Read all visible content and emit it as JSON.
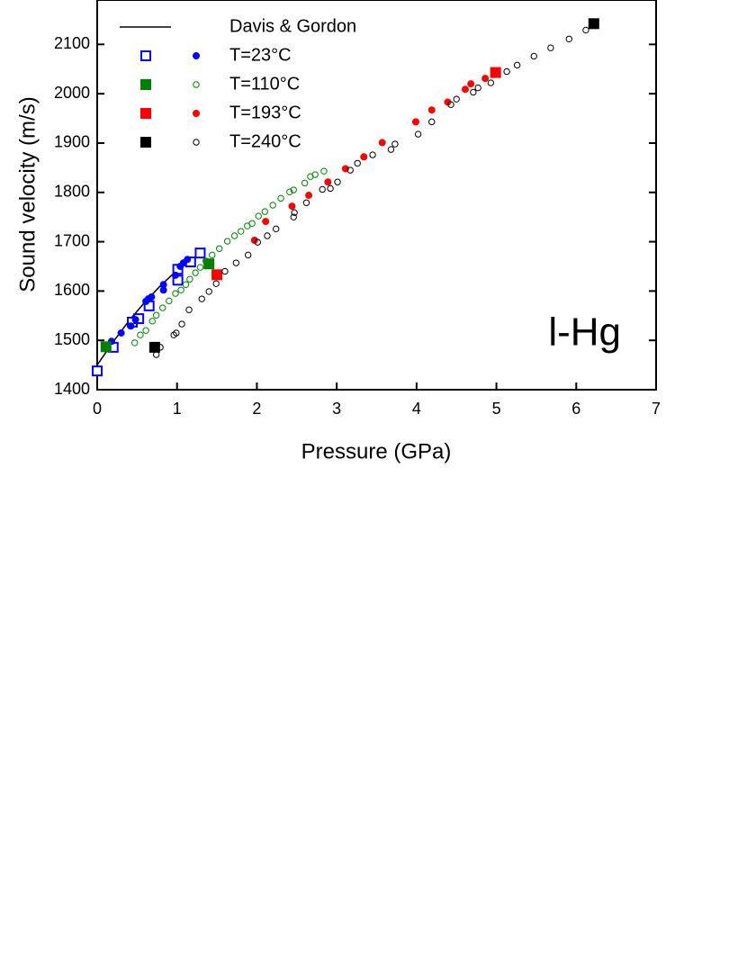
{
  "chart_data": {
    "type": "scatter",
    "xlabel": "Pressure (GPa)",
    "ylabel": "Sound velocity (m/s)",
    "annotation": "l-Hg",
    "xlim": [
      0,
      7
    ],
    "xticks": [
      0,
      1,
      2,
      3,
      4,
      5,
      6,
      7
    ],
    "ylim": [
      1400,
      2190
    ],
    "yticks": [
      1400,
      1500,
      1600,
      1700,
      1800,
      1900,
      2000,
      2100
    ],
    "series": [
      {
        "name": "Davis & Gordon",
        "color": "#000000",
        "x": [
          0,
          0.2,
          0.4,
          0.6,
          0.8,
          1.0,
          1.2
        ],
        "values": [
          1450,
          1497,
          1540,
          1578,
          1612,
          1642,
          1668
        ]
      },
      {
        "name": "T=23°C",
        "color": "#0000ff",
        "squares": {
          "filled": false,
          "x": [
            0,
            0.2,
            0.44,
            0.52,
            0.65,
            1.01,
            1.01,
            1.17,
            1.29
          ],
          "values": [
            1438,
            1486,
            1537,
            1544,
            1570,
            1622,
            1644,
            1659,
            1677
          ]
        },
        "circles": {
          "filled": true,
          "x": [
            0.11,
            0.18,
            0.3,
            0.42,
            0.48,
            0.61,
            0.64,
            0.68,
            0.83,
            0.83,
            0.98,
            1.04,
            1.08,
            1.13
          ],
          "values": [
            1486,
            1498,
            1515,
            1529,
            1542,
            1579,
            1584,
            1588,
            1613,
            1602,
            1632,
            1650,
            1657,
            1664
          ]
        }
      },
      {
        "name": "T=110°C",
        "color": "#008000",
        "squares": {
          "filled": true,
          "x": [
            0.11,
            1.4
          ],
          "values": [
            1487,
            1655
          ]
        },
        "circles": {
          "filled": false,
          "x": [
            0.47,
            0.54,
            0.61,
            0.69,
            0.74,
            0.82,
            0.9,
            0.98,
            1.05,
            1.11,
            1.16,
            1.23,
            1.29,
            1.36,
            1.44,
            1.53,
            1.63,
            1.72,
            1.8,
            1.88,
            1.94,
            2.02,
            2.1,
            2.2,
            2.3,
            2.41,
            2.46,
            2.6,
            2.67,
            2.73,
            2.84
          ],
          "values": [
            1495,
            1511,
            1520,
            1539,
            1551,
            1566,
            1580,
            1595,
            1602,
            1613,
            1624,
            1637,
            1648,
            1661,
            1673,
            1686,
            1701,
            1712,
            1721,
            1732,
            1737,
            1752,
            1761,
            1774,
            1788,
            1801,
            1805,
            1819,
            1832,
            1836,
            1843
          ]
        }
      },
      {
        "name": "T=193°C",
        "color": "#ff0000",
        "squares": {
          "filled": true,
          "x": [
            1.5,
            4.99
          ],
          "values": [
            1633,
            2043
          ]
        },
        "circles": {
          "filled": true,
          "x": [
            1.97,
            2.11,
            2.44,
            2.65,
            2.89,
            3.11,
            3.34,
            3.57,
            3.99,
            4.19,
            4.39,
            4.61,
            4.68,
            4.86
          ],
          "values": [
            1703,
            1741,
            1772,
            1794,
            1821,
            1848,
            1872,
            1901,
            1943,
            1967,
            1983,
            2009,
            2020,
            2031
          ]
        }
      },
      {
        "name": "T=240°C",
        "color": "#000000",
        "squares": {
          "filled": true,
          "x": [
            0.72,
            6.22
          ],
          "values": [
            1486,
            2142
          ]
        },
        "circles": {
          "filled": false,
          "x": [
            0.74,
            0.79,
            0.96,
            0.99,
            1.06,
            1.15,
            1.31,
            1.4,
            1.49,
            1.6,
            1.74,
            1.89,
            2.01,
            2.13,
            2.24,
            2.46,
            2.47,
            2.62,
            2.82,
            2.92,
            3.01,
            3.17,
            3.26,
            3.45,
            3.68,
            3.73,
            4.02,
            4.19,
            4.43,
            4.5,
            4.71,
            4.77,
            4.93,
            5.13,
            5.26,
            5.47,
            5.68,
            5.91,
            6.12
          ],
          "values": [
            1471,
            1486,
            1511,
            1515,
            1533,
            1562,
            1584,
            1599,
            1615,
            1640,
            1657,
            1673,
            1699,
            1712,
            1726,
            1750,
            1759,
            1779,
            1806,
            1808,
            1821,
            1845,
            1859,
            1876,
            1887,
            1898,
            1918,
            1943,
            1978,
            1989,
            2003,
            2012,
            2022,
            2045,
            2058,
            2076,
            2093,
            2111,
            2129
          ]
        }
      }
    ]
  }
}
